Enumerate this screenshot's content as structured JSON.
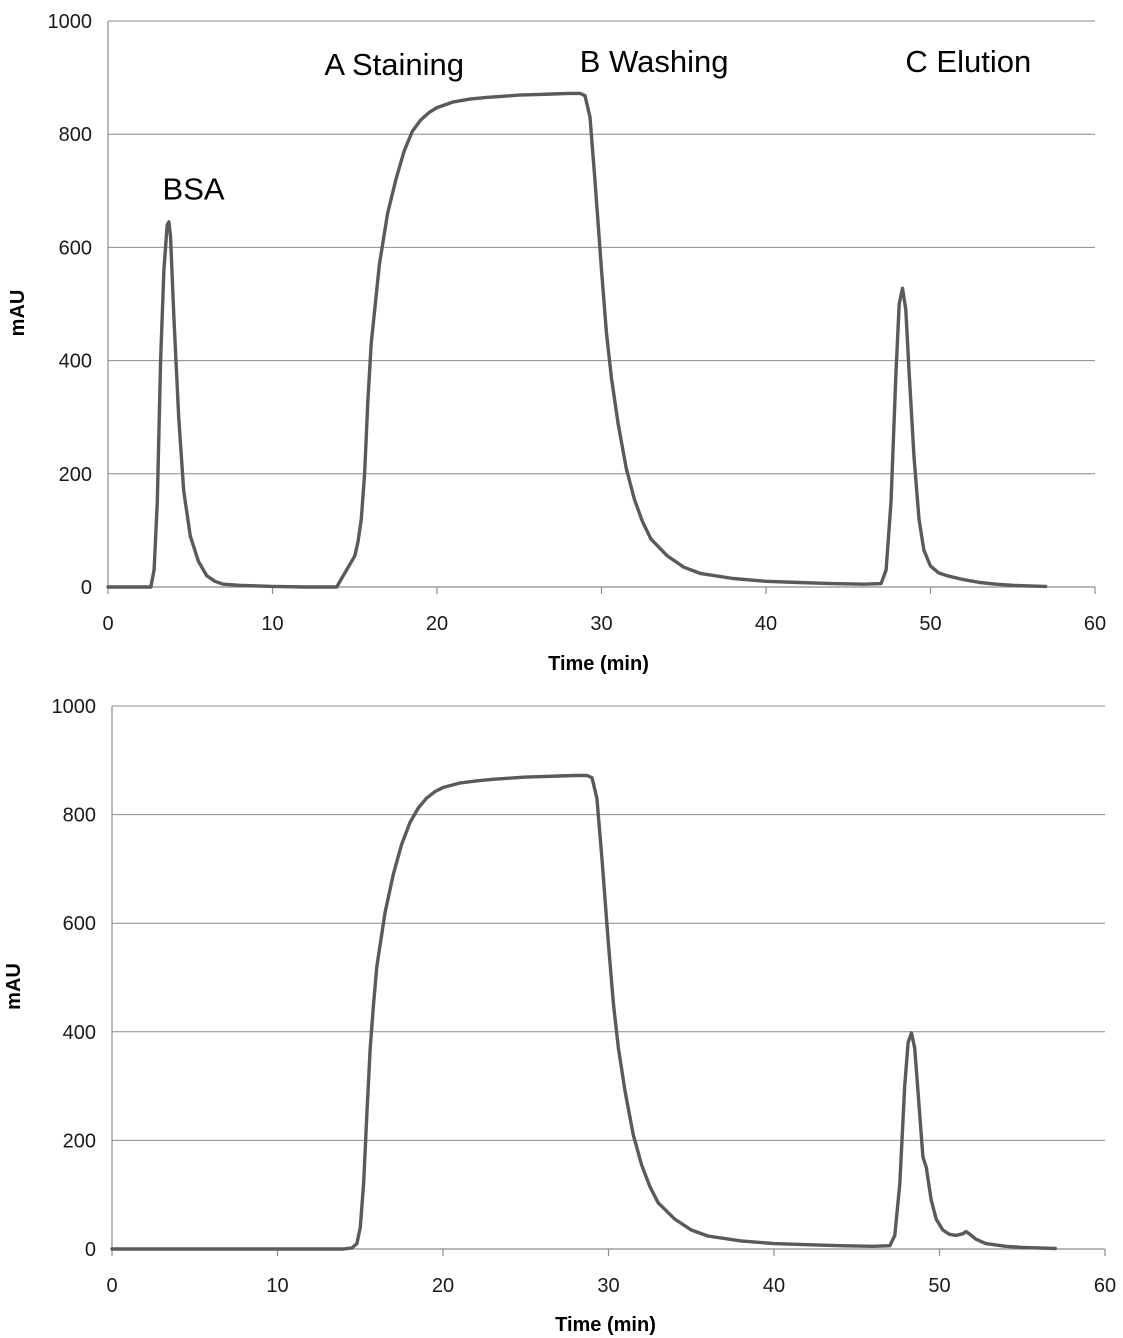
{
  "chart_data": [
    {
      "type": "line",
      "xlabel": "Time (min)",
      "ylabel": "mAU",
      "xlim": [
        0,
        60
      ],
      "ylim": [
        0,
        1000
      ],
      "xticks": [
        "0",
        "10",
        "20",
        "30",
        "40",
        "50",
        "60"
      ],
      "yticks": [
        "0",
        "200",
        "400",
        "600",
        "800",
        "1000"
      ],
      "grid": "horizontal",
      "annotations": [
        {
          "text": "BSA",
          "x": 5.2,
          "y": 685
        },
        {
          "text": "A Staining",
          "x": 17.4,
          "y": 905
        },
        {
          "text": "B Washing",
          "x": 33.2,
          "y": 910
        },
        {
          "text": "C Elution",
          "x": 52.3,
          "y": 910
        }
      ],
      "series": [
        {
          "x": [
            0,
            2.6,
            2.8,
            3.0,
            3.2,
            3.4,
            3.6,
            3.7,
            3.8,
            4.0,
            4.3,
            4.6,
            5.0,
            5.5,
            6.0,
            6.5,
            7.0,
            8.0,
            10.0,
            12.0,
            13.9,
            14.2,
            14.6,
            15.0,
            15.2,
            15.4,
            15.6,
            15.8,
            16.0,
            16.5,
            17.0,
            17.5,
            18.0,
            18.5,
            19.0,
            19.5,
            20.0,
            21.0,
            22.0,
            23.0,
            24.0,
            25.0,
            26.0,
            27.0,
            28.0,
            28.7,
            29.0,
            29.3,
            29.6,
            30.0,
            30.3,
            30.6,
            31.0,
            31.5,
            32.0,
            32.5,
            33.0,
            34.0,
            35.0,
            36.0,
            38.0,
            40.0,
            42.0,
            44.0,
            46.0,
            47.0,
            47.3,
            47.6,
            47.9,
            48.1,
            48.3,
            48.5,
            48.7,
            49.0,
            49.3,
            49.6,
            50.0,
            50.5,
            51.0,
            52.0,
            53.0,
            54.0,
            55.0,
            56.0,
            57.0
          ],
          "values": [
            0,
            0,
            30,
            150,
            400,
            560,
            640,
            645,
            620,
            480,
            300,
            170,
            90,
            45,
            20,
            10,
            5,
            3,
            1,
            0,
            0,
            15,
            35,
            55,
            80,
            120,
            200,
            330,
            430,
            570,
            660,
            720,
            770,
            805,
            825,
            838,
            847,
            857,
            862,
            865,
            867,
            869,
            870,
            871,
            872,
            872,
            868,
            830,
            720,
            560,
            450,
            370,
            290,
            210,
            155,
            115,
            85,
            55,
            35,
            24,
            15,
            10,
            8,
            6,
            5,
            6,
            30,
            150,
            380,
            500,
            528,
            490,
            380,
            230,
            120,
            65,
            37,
            25,
            20,
            13,
            8,
            5,
            3,
            2,
            1
          ]
        }
      ]
    },
    {
      "type": "line",
      "xlabel": "Time (min)",
      "ylabel": "mAU",
      "xlim": [
        0,
        60
      ],
      "ylim": [
        0,
        1000
      ],
      "xticks": [
        "0",
        "10",
        "20",
        "30",
        "40",
        "50",
        "60"
      ],
      "yticks": [
        "0",
        "200",
        "400",
        "600",
        "800",
        "1000"
      ],
      "grid": "horizontal",
      "series": [
        {
          "x": [
            0,
            5.0,
            10.0,
            14.0,
            14.5,
            14.8,
            15.0,
            15.2,
            15.4,
            15.6,
            15.8,
            16.0,
            16.5,
            17.0,
            17.5,
            18.0,
            18.5,
            19.0,
            19.5,
            20.0,
            21.0,
            22.0,
            23.0,
            24.0,
            25.0,
            26.0,
            27.0,
            28.0,
            28.7,
            29.0,
            29.3,
            29.6,
            30.0,
            30.3,
            30.6,
            31.0,
            31.5,
            32.0,
            32.5,
            33.0,
            34.0,
            35.0,
            36.0,
            38.0,
            40.0,
            42.0,
            44.0,
            46.0,
            47.0,
            47.3,
            47.6,
            47.9,
            48.1,
            48.3,
            48.5,
            48.7,
            49.0,
            49.2,
            49.5,
            49.8,
            50.2,
            50.6,
            51.0,
            51.4,
            51.6,
            51.8,
            52.2,
            52.8,
            54.0,
            55.0,
            56.0,
            57.0
          ],
          "values": [
            0,
            0,
            0,
            0,
            2,
            10,
            40,
            120,
            250,
            370,
            450,
            520,
            620,
            690,
            745,
            785,
            812,
            830,
            842,
            850,
            858,
            862,
            865,
            867,
            869,
            870,
            871,
            872,
            872,
            868,
            830,
            720,
            560,
            450,
            370,
            290,
            210,
            155,
            115,
            85,
            55,
            35,
            24,
            15,
            10,
            8,
            6,
            5,
            6,
            25,
            120,
            300,
            380,
            398,
            370,
            290,
            170,
            150,
            90,
            55,
            35,
            27,
            25,
            28,
            32,
            28,
            18,
            10,
            5,
            3,
            2,
            1
          ]
        }
      ]
    }
  ]
}
